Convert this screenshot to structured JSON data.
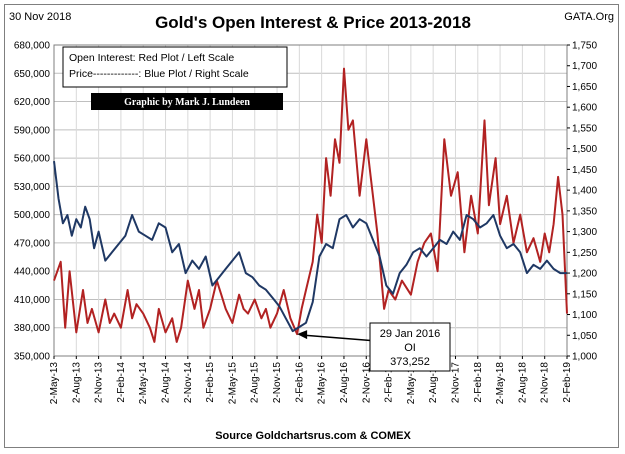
{
  "chart_data": {
    "type": "line",
    "title": "Gold's Open Interest & Price 2013-2018",
    "date_label": "30 Nov 2018",
    "brand": "GATA.Org",
    "source": "Source Goldchartsrus.com & COMEX",
    "credit": "Graphic by Mark J. Lundeen",
    "legend_lines": [
      "Open Interest:  Red Plot / Left Scale",
      "Price-------------: Blue Plot / Right Scale"
    ],
    "left_axis": {
      "min": 350000,
      "max": 680000,
      "ticks": [
        "350,000",
        "380,000",
        "410,000",
        "440,000",
        "470,000",
        "500,000",
        "530,000",
        "560,000",
        "590,000",
        "620,000",
        "650,000",
        "680,000"
      ]
    },
    "right_axis": {
      "min": 1000,
      "max": 1750,
      "ticks": [
        "1,000",
        "1,050",
        "1,100",
        "1,150",
        "1,200",
        "1,250",
        "1,300",
        "1,350",
        "1,400",
        "1,450",
        "1,500",
        "1,550",
        "1,600",
        "1,650",
        "1,700",
        "1,750"
      ]
    },
    "x_ticks": [
      "2-May-13",
      "2-Aug-13",
      "2-Nov-13",
      "2-Feb-14",
      "2-May-14",
      "2-Aug-14",
      "2-Nov-14",
      "2-Feb-15",
      "2-May-15",
      "2-Aug-15",
      "2-Nov-15",
      "2-Feb-16",
      "2-May-16",
      "2-Aug-16",
      "2-Nov-16",
      "2-Feb-17",
      "2-May-17",
      "2-Aug-17",
      "2-Nov-17",
      "2-Feb-18",
      "2-May-18",
      "2-Aug-18",
      "2-Nov-18",
      "2-Feb-19"
    ],
    "grid": true,
    "annotation": {
      "lines": [
        "29 Jan 2016",
        "OI",
        "373,252"
      ],
      "x_index": 10.9,
      "value": 373252
    },
    "series": [
      {
        "axis": "left",
        "color": "#b22222",
        "x": [
          0,
          0.3,
          0.5,
          0.7,
          1,
          1.3,
          1.5,
          1.7,
          2,
          2.3,
          2.5,
          2.7,
          3,
          3.3,
          3.5,
          3.7,
          4,
          4.3,
          4.5,
          4.7,
          5,
          5.3,
          5.5,
          5.7,
          6,
          6.3,
          6.5,
          6.7,
          7,
          7.3,
          7.5,
          7.7,
          8,
          8.3,
          8.5,
          8.7,
          9,
          9.3,
          9.5,
          9.7,
          10,
          10.3,
          10.6,
          10.9,
          11.1,
          11.3,
          11.6,
          11.8,
          12,
          12.2,
          12.4,
          12.6,
          12.8,
          13,
          13.2,
          13.4,
          13.7,
          14,
          14.2,
          14.5,
          14.8,
          15,
          15.3,
          15.6,
          16,
          16.3,
          16.6,
          16.9,
          17.2,
          17.5,
          17.8,
          18.1,
          18.4,
          18.7,
          19,
          19.3,
          19.5,
          19.8,
          20,
          20.3,
          20.6,
          20.9,
          21.2,
          21.5,
          21.8,
          22,
          22.2,
          22.4,
          22.6,
          22.8,
          23
        ],
        "values": [
          430000,
          450000,
          380000,
          440000,
          375000,
          420000,
          385000,
          400000,
          375000,
          410000,
          385000,
          395000,
          380000,
          420000,
          390000,
          405000,
          395000,
          380000,
          365000,
          400000,
          375000,
          390000,
          365000,
          380000,
          430000,
          400000,
          420000,
          380000,
          400000,
          430000,
          415000,
          400000,
          385000,
          415000,
          400000,
          395000,
          410000,
          390000,
          400000,
          380000,
          395000,
          420000,
          390000,
          373252,
          400000,
          420000,
          450000,
          500000,
          470000,
          560000,
          520000,
          580000,
          555000,
          655000,
          590000,
          600000,
          520000,
          580000,
          540000,
          480000,
          400000,
          420000,
          410000,
          430000,
          415000,
          450000,
          470000,
          480000,
          440000,
          580000,
          520000,
          545000,
          460000,
          520000,
          480000,
          600000,
          510000,
          560000,
          490000,
          520000,
          470000,
          500000,
          460000,
          475000,
          450000,
          480000,
          460000,
          490000,
          540000,
          500000,
          395000
        ]
      },
      {
        "axis": "right",
        "color": "#1f3864",
        "x": [
          0,
          0.2,
          0.4,
          0.6,
          0.8,
          1,
          1.2,
          1.4,
          1.6,
          1.8,
          2,
          2.3,
          2.6,
          2.9,
          3.2,
          3.5,
          3.8,
          4.1,
          4.4,
          4.7,
          5,
          5.3,
          5.6,
          5.9,
          6.2,
          6.5,
          6.8,
          7.1,
          7.4,
          7.7,
          8,
          8.3,
          8.6,
          8.9,
          9.2,
          9.5,
          9.8,
          10.1,
          10.4,
          10.7,
          11,
          11.3,
          11.6,
          11.9,
          12.2,
          12.5,
          12.8,
          13.1,
          13.4,
          13.7,
          14,
          14.3,
          14.6,
          14.9,
          15.2,
          15.5,
          15.8,
          16.1,
          16.4,
          16.7,
          17,
          17.3,
          17.6,
          17.9,
          18.2,
          18.5,
          18.8,
          19.1,
          19.4,
          19.7,
          20,
          20.3,
          20.6,
          20.9,
          21.2,
          21.5,
          21.8,
          22.1,
          22.4,
          22.7,
          23
        ],
        "values": [
          1470,
          1380,
          1320,
          1340,
          1290,
          1330,
          1310,
          1360,
          1330,
          1260,
          1300,
          1230,
          1250,
          1270,
          1290,
          1340,
          1300,
          1290,
          1280,
          1320,
          1310,
          1250,
          1270,
          1200,
          1230,
          1210,
          1240,
          1170,
          1190,
          1210,
          1230,
          1250,
          1200,
          1190,
          1170,
          1160,
          1140,
          1120,
          1090,
          1060,
          1070,
          1080,
          1130,
          1240,
          1270,
          1260,
          1330,
          1340,
          1310,
          1330,
          1320,
          1280,
          1240,
          1170,
          1150,
          1200,
          1220,
          1250,
          1260,
          1240,
          1260,
          1280,
          1270,
          1300,
          1280,
          1340,
          1330,
          1310,
          1320,
          1340,
          1290,
          1260,
          1270,
          1250,
          1200,
          1220,
          1210,
          1230,
          1210,
          1200,
          1200
        ]
      }
    ]
  }
}
